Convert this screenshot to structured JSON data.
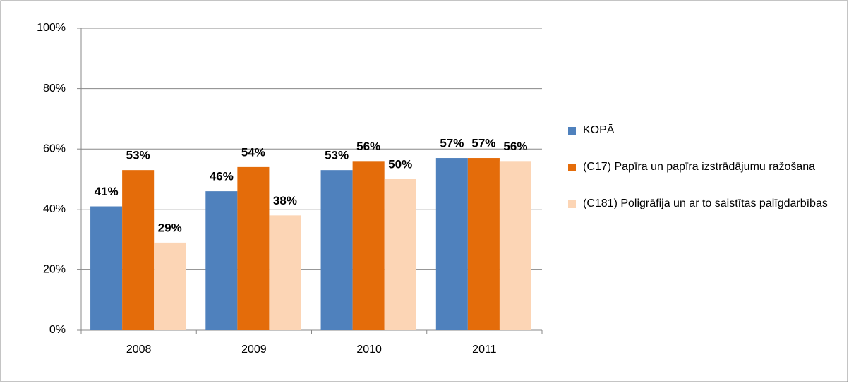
{
  "chart_data": {
    "type": "bar",
    "categories": [
      "2008",
      "2009",
      "2010",
      "2011"
    ],
    "series": [
      {
        "name": "KOPĀ",
        "color": "#4f81bd",
        "values": [
          41,
          46,
          53,
          57
        ],
        "value_labels": [
          "41%",
          "46%",
          "53%",
          "57%"
        ]
      },
      {
        "name": "(C17) Papīra un papīra izstrādājumu ražošana",
        "color": "#e46c0a",
        "values": [
          53,
          54,
          56,
          57
        ],
        "value_labels": [
          "53%",
          "54%",
          "56%",
          "57%"
        ]
      },
      {
        "name": "(C181) Poligrāfija un ar to saistītas palīgdarbības",
        "color": "#fcd5b5",
        "values": [
          29,
          38,
          50,
          56
        ],
        "value_labels": [
          "29%",
          "38%",
          "50%",
          "56%"
        ]
      }
    ],
    "ylim": [
      0,
      100
    ],
    "yticks": [
      {
        "value": 0,
        "label": "0%"
      },
      {
        "value": 20,
        "label": "20%"
      },
      {
        "value": 40,
        "label": "40%"
      },
      {
        "value": 60,
        "label": "60%"
      },
      {
        "value": 80,
        "label": "80%"
      },
      {
        "value": 100,
        "label": "100%"
      }
    ],
    "grid": true,
    "legend": "right"
  }
}
